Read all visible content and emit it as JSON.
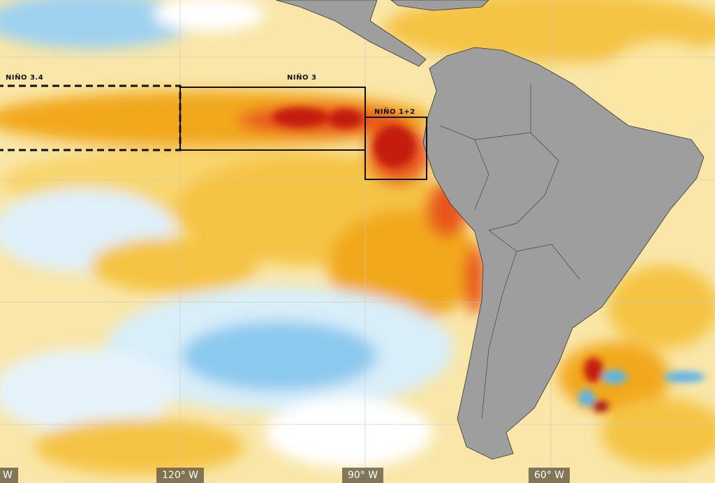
{
  "map": {
    "regions": [
      {
        "name": "NIÑO 3.4",
        "border": "dashed"
      },
      {
        "name": "NIÑO 3",
        "border": "solid"
      },
      {
        "name": "NIÑO 1+2",
        "border": "solid"
      }
    ],
    "longitude_labels": [
      "W",
      "120° W",
      "90° W",
      "60° W"
    ],
    "colors": {
      "land": "#9e9e9e",
      "warm_light": "#f8d66e",
      "warm": "#f2a81d",
      "hot": "#e8561c",
      "hottest": "#c41f0d",
      "cool_light": "#cde9f7",
      "cool": "#5fb3e6"
    }
  }
}
